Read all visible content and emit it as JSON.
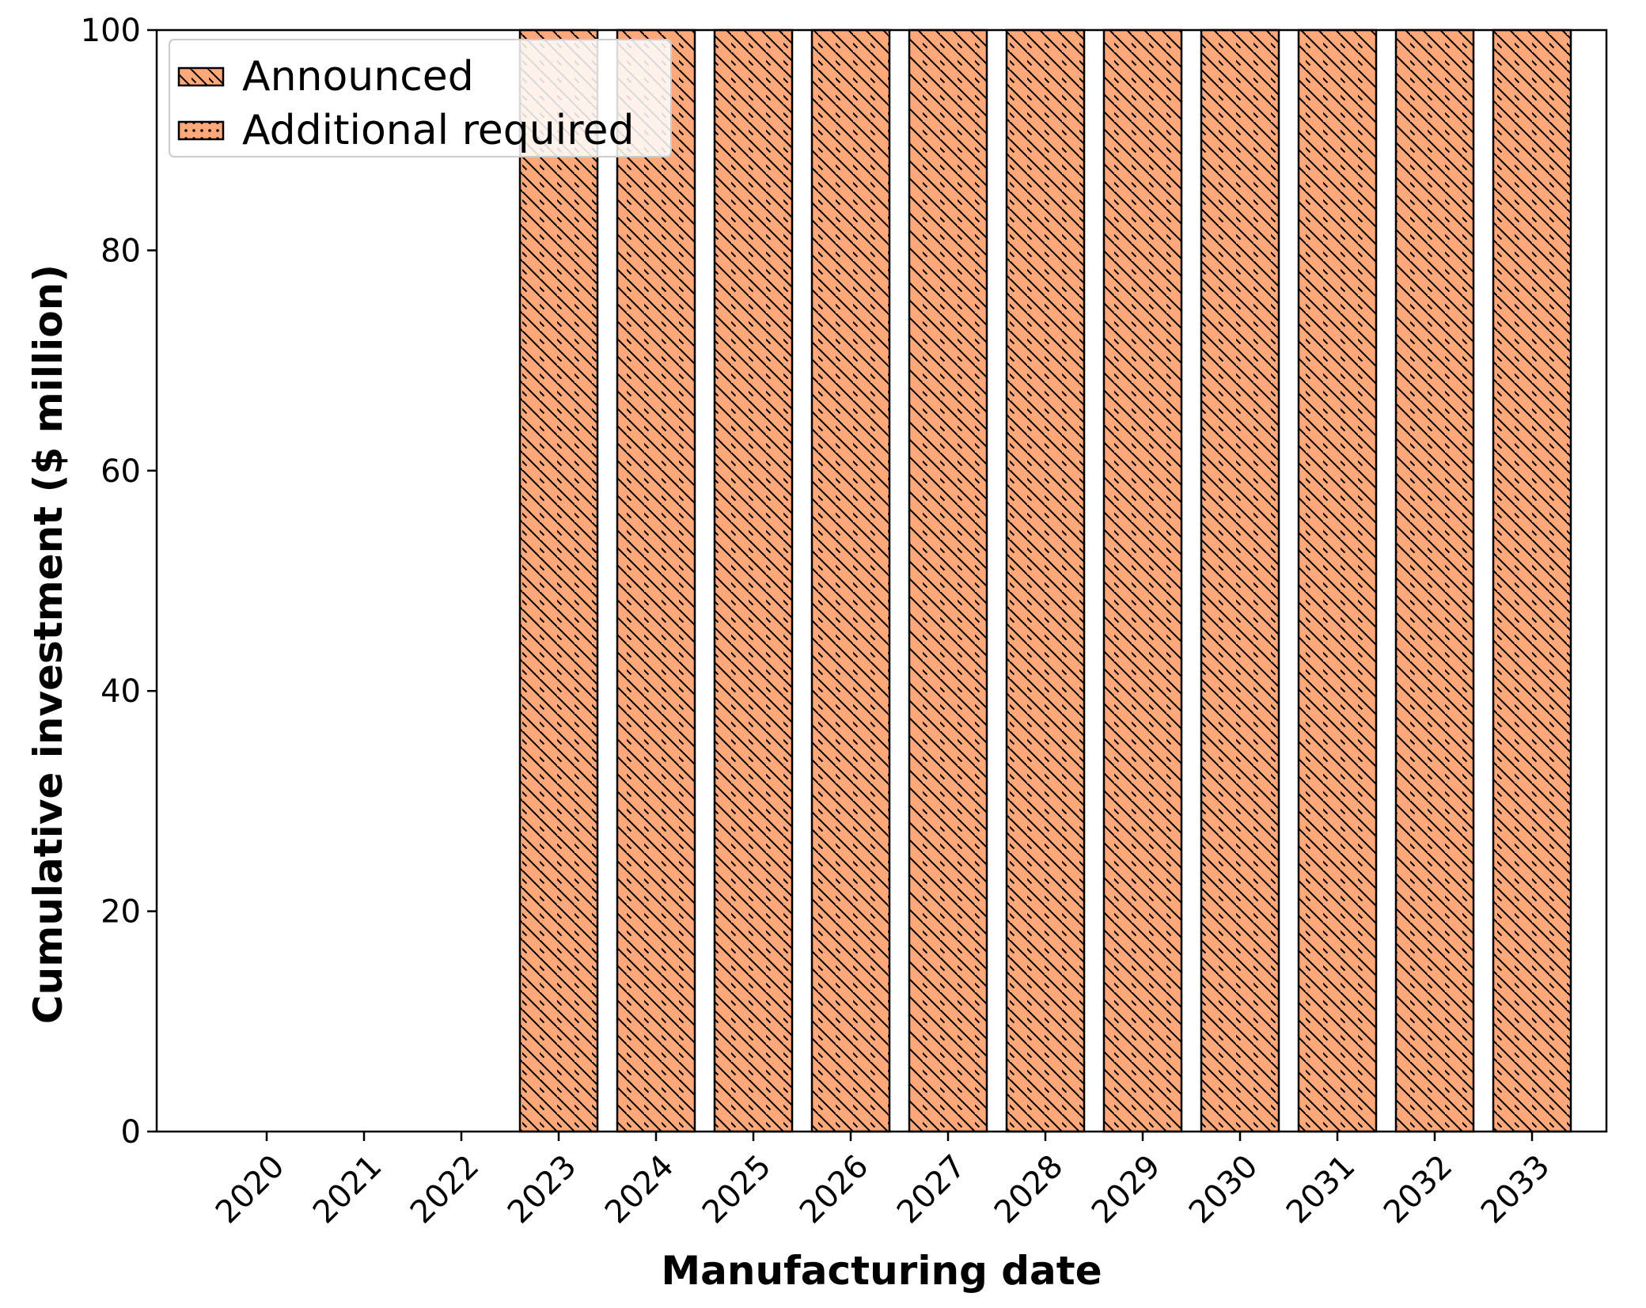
{
  "chart_data": {
    "type": "bar",
    "stacked": true,
    "title": "",
    "xlabel": "Manufacturing date",
    "ylabel": "Cumulative investment ($ million)",
    "ylim": [
      0,
      100
    ],
    "yticks": [
      0,
      20,
      40,
      60,
      80,
      100
    ],
    "categories": [
      "2020",
      "2021",
      "2022",
      "2023",
      "2024",
      "2025",
      "2026",
      "2027",
      "2028",
      "2029",
      "2030",
      "2031",
      "2032",
      "2033"
    ],
    "series": [
      {
        "name": "Announced",
        "hatch": "diagonal",
        "color": "#FFA87A",
        "values": [
          0,
          0,
          0,
          100,
          100,
          100,
          100,
          100,
          100,
          100,
          100,
          100,
          100,
          100
        ]
      },
      {
        "name": "Additional required",
        "hatch": "dots",
        "color": "#FFA87A",
        "values": [
          0,
          0,
          0,
          0,
          0,
          0,
          0,
          0,
          0,
          0,
          0,
          0,
          0,
          0
        ]
      }
    ],
    "legend_position": "top-left",
    "grid": false,
    "tick_label_rotation": -45
  }
}
